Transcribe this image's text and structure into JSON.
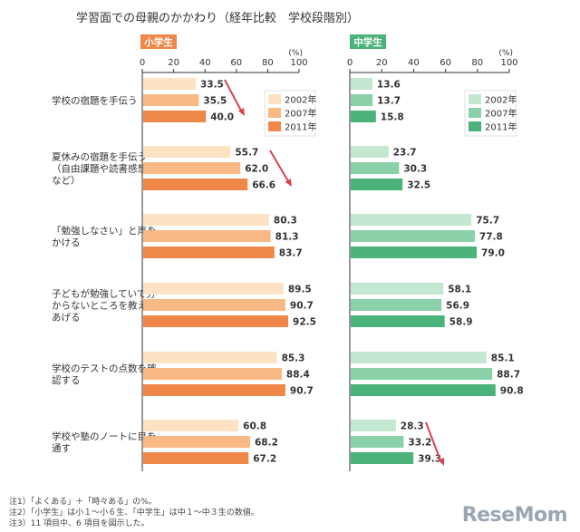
{
  "title": "学習面での母親のかかわり（経年比較　学校段階別）",
  "colors": {
    "elem": [
      "#fde3c4",
      "#f9b985",
      "#ee8748"
    ],
    "mid": [
      "#c3e7d0",
      "#8ad1aa",
      "#4bb37a"
    ],
    "elem_label_bg": "#ee8748",
    "mid_label_bg": "#4bb37a",
    "arrow": "#d9434b"
  },
  "notes": [
    "注1）「よくある」＋「時々ある」の%。",
    "注2）「小学生」は小１〜小６生、「中学生」は中１〜中３生の数値。",
    "注3）11 項目中、6 項目を図示した。"
  ],
  "brand": "ReseMom",
  "chart_data": [
    {
      "type": "bar",
      "panel_label": "小学生",
      "axis_unit": "(%)",
      "xlim": [
        0,
        100
      ],
      "ticks": [
        0,
        20,
        40,
        60,
        80,
        100
      ],
      "categories": [
        "学校の宿題を手伝う",
        "夏休みの宿題を手伝う（自由課題や読書感想文など）",
        "「勉強しなさい」と声をかける",
        "子どもが勉強していて分からないところを教えてあげる",
        "学校のテストの点数を確認する",
        "学校や塾のノートに目を通す"
      ],
      "category_lines": [
        [
          "学校の宿題を手伝う"
        ],
        [
          "夏休みの宿題を手伝う",
          "（自由課題や読書感想文",
          "など）"
        ],
        [
          "「勉強しなさい」と声を",
          "かける"
        ],
        [
          "子どもが勉強していて分",
          "からないところを教えて",
          "あげる"
        ],
        [
          "学校のテストの点数を確",
          "認する"
        ],
        [
          "学校や塾のノートに目を",
          "通す"
        ]
      ],
      "series": [
        {
          "name": "2002年",
          "values": [
            33.5,
            55.7,
            80.3,
            89.5,
            85.3,
            60.8
          ]
        },
        {
          "name": "2007年",
          "values": [
            35.5,
            62.0,
            81.3,
            90.7,
            88.4,
            68.2
          ]
        },
        {
          "name": "2011年",
          "values": [
            40.0,
            66.6,
            83.7,
            92.5,
            90.7,
            67.2
          ]
        }
      ],
      "legend": "top-right"
    },
    {
      "type": "bar",
      "panel_label": "中学生",
      "axis_unit": "(%)",
      "xlim": [
        0,
        100
      ],
      "ticks": [
        0,
        20,
        40,
        60,
        80,
        100
      ],
      "series": [
        {
          "name": "2002年",
          "values": [
            13.6,
            23.7,
            75.7,
            58.1,
            85.1,
            28.3
          ]
        },
        {
          "name": "2007年",
          "values": [
            13.7,
            30.3,
            77.8,
            56.9,
            88.7,
            33.2
          ]
        },
        {
          "name": "2011年",
          "values": [
            15.8,
            32.5,
            79.0,
            58.9,
            90.8,
            39.3
          ]
        }
      ],
      "legend": "top-right"
    }
  ]
}
